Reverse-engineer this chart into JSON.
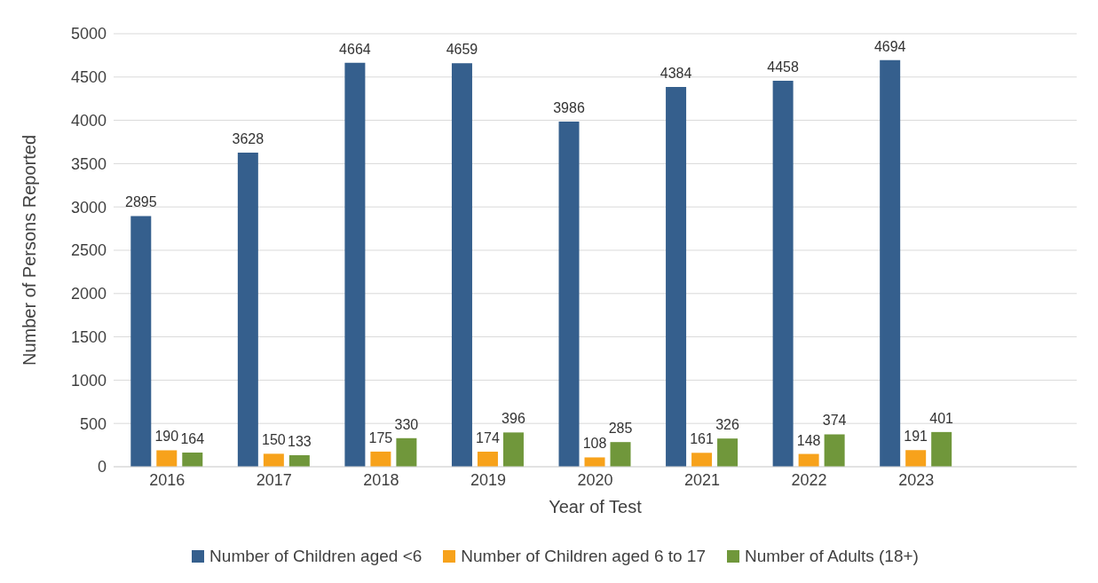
{
  "chart_data": {
    "type": "bar",
    "xlabel": "Year of Test",
    "ylabel": "Number of Persons Reported",
    "categories": [
      "2016",
      "2017",
      "2018",
      "2019",
      "2020",
      "2021",
      "2022",
      "2023",
      null
    ],
    "series": [
      {
        "name": "Number of Children aged <6",
        "color": "#355f8d",
        "values": [
          2895,
          3628,
          4664,
          4659,
          3986,
          4384,
          4458,
          4694,
          null
        ]
      },
      {
        "name": "Number of Children aged 6 to 17",
        "color": "#f7a21b",
        "values": [
          190,
          150,
          175,
          174,
          108,
          161,
          148,
          191,
          null
        ]
      },
      {
        "name": "Number of Adults (18+)",
        "color": "#70973b",
        "values": [
          164,
          133,
          330,
          396,
          285,
          326,
          374,
          401,
          null
        ]
      }
    ],
    "ylim": [
      0,
      5000
    ],
    "yticks": [
      0,
      500,
      1000,
      1500,
      2000,
      2500,
      3000,
      3500,
      4000,
      4500,
      5000
    ],
    "grid": "y",
    "legend": "bottom",
    "data_labels": true
  }
}
